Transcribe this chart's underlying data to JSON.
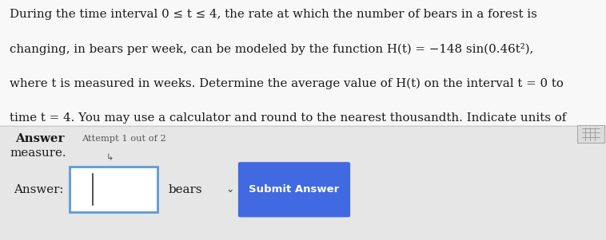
{
  "bg_color_top": "#f5f5f5",
  "bg_color_bottom": "#e8e8e8",
  "main_lines": [
    "During the time interval 0 ≤ t ≤ 4, the rate at which the number of bears in a forest is",
    "changing, in bears per week, can be modeled by the function H(t) = −148 sin(0.46t²),",
    "where t is measured in weeks. Determine the average value of H(t) on the interval t = 0 to",
    "time t = 4. You may use a calculator and round to the nearest thousandth. Indicate units of",
    "measure."
  ],
  "answer_label": "Answer",
  "attempt_text": "Attempt 1 out of 2",
  "answer_prefix": "Answer:",
  "unit_text": "bears",
  "submit_text": "Submit Answer",
  "submit_bg": "#4169e1",
  "submit_text_color": "#ffffff",
  "input_border_color": "#5b9bd5",
  "text_color": "#1a1a1a",
  "attempt_color": "#555555",
  "figsize": [
    7.58,
    3.01
  ],
  "dpi": 100
}
